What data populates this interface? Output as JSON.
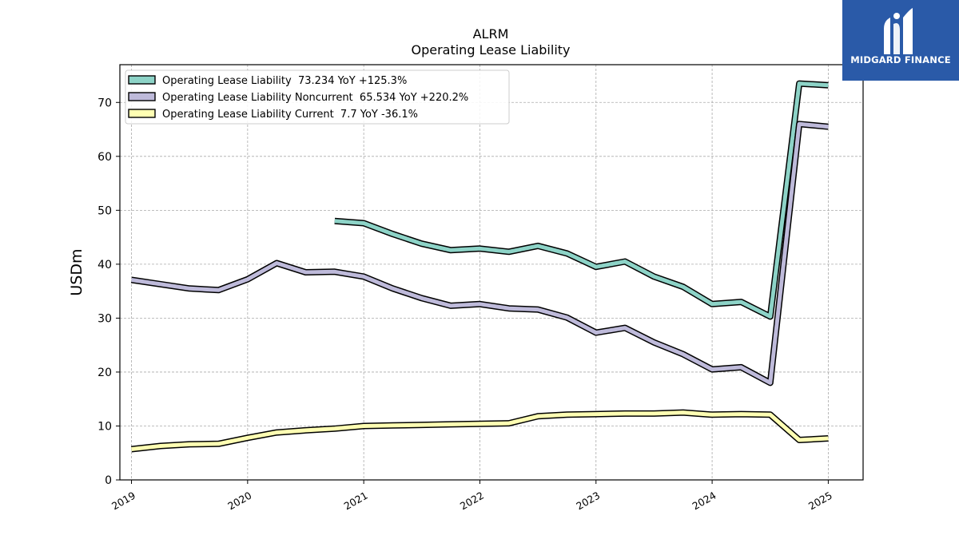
{
  "brand": {
    "name": "MIDGARD FINANCE",
    "bg_color": "#2a5aa8"
  },
  "chart_data": {
    "type": "line",
    "title": "ALRM",
    "subtitle": "Operating Lease Liability",
    "ylabel": "USDm",
    "xlabel": "",
    "ylim": [
      0,
      77
    ],
    "yticks": [
      0,
      10,
      20,
      30,
      40,
      50,
      60,
      70
    ],
    "xlim": [
      2018.9,
      2025.3
    ],
    "xticks": [
      2019,
      2020,
      2021,
      2022,
      2023,
      2024,
      2025
    ],
    "grid": true,
    "legend_position": "top-left",
    "series": [
      {
        "name": "Operating Lease Liability  73.234 YoY +125.3%",
        "color": "#8dd3c7",
        "x": [
          2020.75,
          2021.0,
          2021.25,
          2021.5,
          2021.75,
          2022.0,
          2022.25,
          2022.5,
          2022.75,
          2023.0,
          2023.25,
          2023.5,
          2023.75,
          2024.0,
          2024.25,
          2024.5,
          2024.75,
          2025.0
        ],
        "values": [
          48.0,
          47.6,
          45.6,
          43.8,
          42.6,
          42.9,
          42.3,
          43.4,
          42.0,
          39.5,
          40.5,
          37.7,
          35.8,
          32.6,
          33.0,
          30.3,
          73.5,
          73.2
        ]
      },
      {
        "name": "Operating Lease Liability Noncurrent  65.534 YoY +220.2%",
        "color": "#bebada",
        "x": [
          2019.0,
          2019.25,
          2019.5,
          2019.75,
          2020.0,
          2020.25,
          2020.5,
          2020.75,
          2021.0,
          2021.25,
          2021.5,
          2021.75,
          2022.0,
          2022.25,
          2022.5,
          2022.75,
          2023.0,
          2023.25,
          2023.5,
          2023.75,
          2024.0,
          2024.25,
          2024.5,
          2024.75,
          2025.0
        ],
        "values": [
          37.1,
          36.3,
          35.5,
          35.2,
          37.2,
          40.2,
          38.5,
          38.6,
          37.7,
          35.5,
          33.7,
          32.3,
          32.6,
          31.8,
          31.6,
          30.1,
          27.3,
          28.2,
          25.5,
          23.3,
          20.5,
          20.9,
          18.0,
          66.0,
          65.5
        ]
      },
      {
        "name": "Operating Lease Liability Current  7.7 YoY -36.1%",
        "color": "#ffffb3",
        "x": [
          2019.0,
          2019.25,
          2019.5,
          2019.75,
          2020.0,
          2020.25,
          2020.5,
          2020.75,
          2021.0,
          2021.25,
          2021.5,
          2021.75,
          2022.0,
          2022.25,
          2022.5,
          2022.75,
          2023.0,
          2023.25,
          2023.5,
          2023.75,
          2024.0,
          2024.25,
          2024.5,
          2024.75,
          2025.0
        ],
        "values": [
          5.7,
          6.3,
          6.6,
          6.7,
          7.8,
          8.8,
          9.2,
          9.5,
          10.0,
          10.1,
          10.2,
          10.3,
          10.4,
          10.5,
          11.8,
          12.1,
          12.2,
          12.3,
          12.3,
          12.5,
          12.1,
          12.2,
          12.1,
          7.4,
          7.7
        ]
      }
    ]
  }
}
